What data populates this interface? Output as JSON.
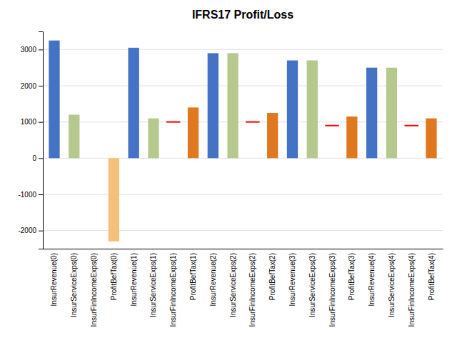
{
  "chart_data": {
    "type": "bar",
    "title": "IFRS17 Profit/Loss",
    "categories": [
      "InsurRevenue(0)",
      "InsurServiceExps(0)",
      "InsurFinIncomeExps(0)",
      "ProfitBefTax(0)",
      "InsurRevenue(1)",
      "InsurServiceExps(1)",
      "InsurFinIncomeExps(1)",
      "ProfitBefTax(1)",
      "InsurRevenue(2)",
      "InsurServiceExps(2)",
      "InsurFinIncomeExps(2)",
      "ProfitBefTax(2)",
      "InsurRevenue(3)",
      "InsurServiceExps(3)",
      "InsurFinIncomeExps(3)",
      "ProfitBefTax(3)",
      "InsurRevenue(4)",
      "InsurServiceExps(4)",
      "InsurFinIncomeExps(4)",
      "ProfitBefTax(4)"
    ],
    "series": [
      {
        "type": "bar",
        "colors": [
          "#4472c4",
          "#b5c98e",
          null,
          "#f5c07a",
          "#4472c4",
          "#b5c98e",
          null,
          "#e07820",
          "#4472c4",
          "#b5c98e",
          null,
          "#e07820",
          "#4472c4",
          "#b5c98e",
          null,
          "#e07820",
          "#4472c4",
          "#b5c98e",
          null,
          "#e07820"
        ],
        "values": [
          3250,
          1200,
          null,
          -2300,
          3050,
          1100,
          null,
          1400,
          2900,
          2900,
          null,
          1250,
          2700,
          2700,
          null,
          1150,
          2500,
          2500,
          null,
          1100
        ]
      },
      {
        "type": "scatter",
        "marker": "dash",
        "color": "red",
        "values": [
          null,
          null,
          null,
          null,
          null,
          null,
          1000,
          null,
          null,
          null,
          1000,
          null,
          null,
          null,
          900,
          null,
          null,
          null,
          900,
          null
        ]
      }
    ],
    "ylim": [
      -2500,
      3500
    ],
    "yticks": [
      -2000,
      -1000,
      0,
      1000,
      2000,
      3000
    ],
    "grid": true
  }
}
